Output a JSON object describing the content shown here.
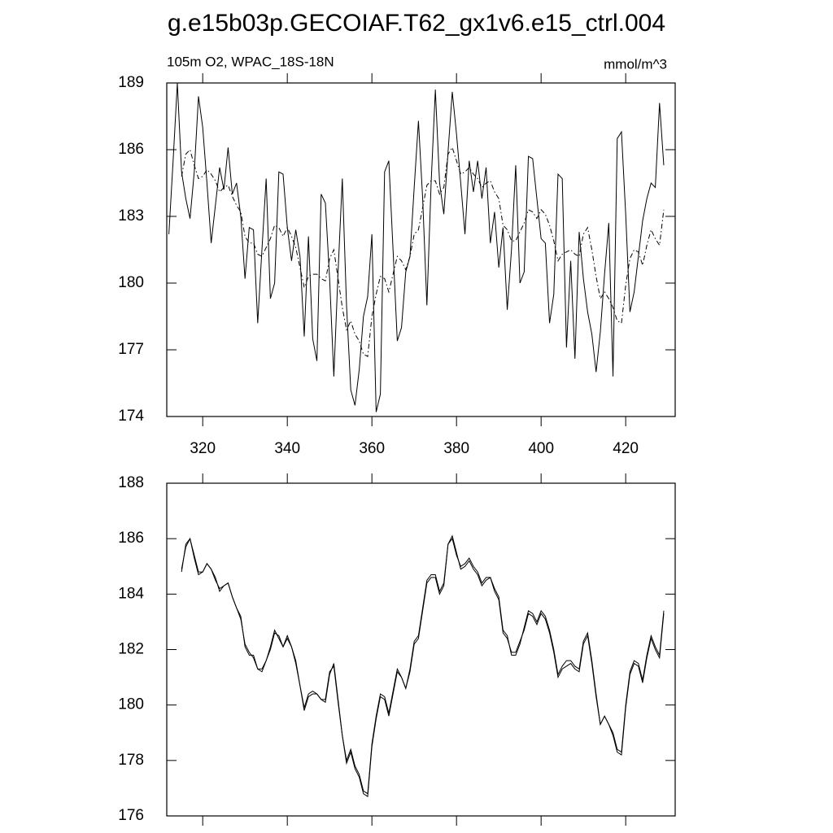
{
  "chart_data": [
    {
      "type": "line",
      "title": "g.e15b03p.GECOIAF.T62_gx1v6.e15_ctrl.004",
      "subtitle": "105m O2, WPAC_18S-18N",
      "units": "mmol/m^3",
      "x": [
        312,
        313,
        314,
        315,
        316,
        317,
        318,
        319,
        320,
        321,
        322,
        323,
        324,
        325,
        326,
        327,
        328,
        329,
        330,
        331,
        332,
        333,
        334,
        335,
        336,
        337,
        338,
        339,
        340,
        341,
        342,
        343,
        344,
        345,
        346,
        347,
        348,
        349,
        350,
        351,
        352,
        353,
        354,
        355,
        356,
        357,
        358,
        359,
        360,
        361,
        362,
        363,
        364,
        365,
        366,
        367,
        368,
        369,
        370,
        371,
        372,
        373,
        374,
        375,
        376,
        377,
        378,
        379,
        380,
        381,
        382,
        383,
        384,
        385,
        386,
        387,
        388,
        389,
        390,
        391,
        392,
        393,
        394,
        395,
        396,
        397,
        398,
        399,
        400,
        401,
        402,
        403,
        404,
        405,
        406,
        407,
        408,
        409,
        410,
        411,
        412,
        413,
        414,
        415,
        416,
        417,
        418,
        419,
        420,
        421,
        422,
        423,
        424,
        425,
        426,
        427,
        428,
        429
      ],
      "series": [
        {
          "color": "#000000",
          "style": "solid",
          "values": [
            182.2,
            185.5,
            189,
            185,
            183.8,
            182.9,
            185,
            188.4,
            187,
            184.5,
            181.8,
            183.5,
            185.2,
            184.2,
            186.1,
            184,
            184.5,
            183,
            180.2,
            182.5,
            182.4,
            178.2,
            181.5,
            184.7,
            179.3,
            180,
            185,
            184.9,
            182.5,
            181,
            182.4,
            181.2,
            177.6,
            182.1,
            177.5,
            176.5,
            184,
            183.6,
            180.2,
            175.8,
            180.5,
            184.7,
            179,
            175.2,
            174.5,
            176.1,
            178.5,
            179.4,
            182.2,
            174.2,
            175,
            185,
            185.5,
            181.5,
            177.4,
            178,
            180.5,
            181.2,
            184.3,
            187.3,
            183.8,
            179,
            184.5,
            188.7,
            184.5,
            183.1,
            185.9,
            188.6,
            186.7,
            184.5,
            182.2,
            185.5,
            184.1,
            185.5,
            183.8,
            185.2,
            181.8,
            183.2,
            180.7,
            182.5,
            178.8,
            181.5,
            185.3,
            180,
            180.5,
            185.7,
            185.6,
            183.8,
            182,
            181.8,
            178.2,
            179.5,
            184.9,
            184.7,
            177.1,
            181,
            176.6,
            182.3,
            180.2,
            178.7,
            177.7,
            176,
            177.8,
            180.4,
            182.7,
            175.8,
            186.5,
            186.8,
            183.1,
            178.7,
            179.6,
            181.2,
            182.8,
            183.8,
            184.5,
            184.3,
            188.1,
            185.3
          ]
        },
        {
          "color": "#000000",
          "style": "dashdot",
          "values": [
            null,
            null,
            null,
            184.8,
            185.8,
            186,
            185.3,
            184.7,
            184.8,
            185.1,
            184.9,
            184.6,
            184.1,
            184.3,
            184.4,
            183.9,
            183.5,
            183.2,
            182.1,
            181.8,
            181.8,
            181.3,
            181.2,
            181.6,
            182,
            182.6,
            182.5,
            182.1,
            182.5,
            182.1,
            181.6,
            180.7,
            179.8,
            180.3,
            180.4,
            180.4,
            180.2,
            180.1,
            181.1,
            181.5,
            180.2,
            178.9,
            177.9,
            178.3,
            177.7,
            177.4,
            176.8,
            176.7,
            178.5,
            179.5,
            180.3,
            180.2,
            179.6,
            180.4,
            181.2,
            181,
            180.6,
            181.2,
            182.2,
            182.4,
            183.4,
            184.4,
            184.6,
            184.6,
            184,
            184.3,
            185.8,
            186.1,
            185.5,
            184.9,
            185,
            185.2,
            184.9,
            184.7,
            184.3,
            184.5,
            184.6,
            184.1,
            183.8,
            182.6,
            182.4,
            181.9,
            181.9,
            182.3,
            182.7,
            183.3,
            183.2,
            182.9,
            183.3,
            183.1,
            182.6,
            181.9,
            181,
            181.3,
            181.4,
            181.5,
            181.3,
            181.2,
            182.2,
            182.5,
            181.5,
            180.3,
            179.3,
            179.6,
            179.3,
            178.9,
            178.3,
            178.2,
            179.9,
            181.1,
            181.5,
            181.4,
            180.8,
            181.7,
            182.4,
            182,
            181.7,
            183.3
          ]
        }
      ],
      "xlim": [
        311.5,
        431.7
      ],
      "xticks": [
        320,
        340,
        360,
        380,
        400,
        420
      ],
      "xtick_labels": true,
      "ylim": [
        174,
        189
      ],
      "yticks": [
        174,
        177,
        180,
        183,
        186,
        189
      ]
    },
    {
      "type": "line",
      "x": [
        312,
        313,
        314,
        315,
        316,
        317,
        318,
        319,
        320,
        321,
        322,
        323,
        324,
        325,
        326,
        327,
        328,
        329,
        330,
        331,
        332,
        333,
        334,
        335,
        336,
        337,
        338,
        339,
        340,
        341,
        342,
        343,
        344,
        345,
        346,
        347,
        348,
        349,
        350,
        351,
        352,
        353,
        354,
        355,
        356,
        357,
        358,
        359,
        360,
        361,
        362,
        363,
        364,
        365,
        366,
        367,
        368,
        369,
        370,
        371,
        372,
        373,
        374,
        375,
        376,
        377,
        378,
        379,
        380,
        381,
        382,
        383,
        384,
        385,
        386,
        387,
        388,
        389,
        390,
        391,
        392,
        393,
        394,
        395,
        396,
        397,
        398,
        399,
        400,
        401,
        402,
        403,
        404,
        405,
        406,
        407,
        408,
        409,
        410,
        411,
        412,
        413,
        414,
        415,
        416,
        417,
        418,
        419,
        420,
        421,
        422,
        423,
        424,
        425,
        426,
        427,
        428,
        429
      ],
      "series": [
        {
          "color": "#000000",
          "style": "solid",
          "values": [
            null,
            null,
            null,
            184.8,
            185.8,
            186,
            185.3,
            184.7,
            184.8,
            185.1,
            184.9,
            184.6,
            184.1,
            184.3,
            184.4,
            183.9,
            183.5,
            183.2,
            182.1,
            181.8,
            181.8,
            181.3,
            181.2,
            181.6,
            182,
            182.6,
            182.5,
            182.1,
            182.5,
            182.1,
            181.6,
            180.7,
            179.8,
            180.3,
            180.4,
            180.4,
            180.2,
            180.1,
            181.1,
            181.5,
            180.2,
            178.9,
            177.9,
            178.3,
            177.7,
            177.4,
            176.8,
            176.7,
            178.5,
            179.5,
            180.3,
            180.2,
            179.6,
            180.4,
            181.2,
            181,
            180.6,
            181.2,
            182.2,
            182.4,
            183.4,
            184.4,
            184.6,
            184.6,
            184,
            184.3,
            185.8,
            186.1,
            185.5,
            184.9,
            185,
            185.2,
            184.9,
            184.7,
            184.3,
            184.5,
            184.6,
            184.1,
            183.8,
            182.6,
            182.4,
            181.9,
            181.9,
            182.3,
            182.7,
            183.3,
            183.2,
            182.9,
            183.3,
            183.1,
            182.6,
            181.9,
            181,
            181.3,
            181.4,
            181.5,
            181.3,
            181.2,
            182.2,
            182.5,
            181.5,
            180.3,
            179.3,
            179.6,
            179.3,
            178.9,
            178.3,
            178.2,
            179.9,
            181.1,
            181.5,
            181.4,
            180.8,
            181.7,
            182.4,
            182,
            181.7,
            183.3
          ]
        },
        {
          "color": "#000000",
          "style": "solid",
          "values": [
            null,
            null,
            null,
            184.9,
            185.7,
            186,
            185.4,
            184.8,
            184.8,
            185.1,
            184.9,
            184.5,
            184.2,
            184.3,
            184.4,
            183.9,
            183.5,
            183.1,
            182.2,
            181.9,
            181.7,
            181.3,
            181.3,
            181.6,
            182.1,
            182.7,
            182.4,
            182.1,
            182.4,
            182.1,
            181.5,
            180.7,
            179.9,
            180.4,
            180.5,
            180.4,
            180.2,
            180.2,
            181.2,
            181.4,
            180.1,
            178.9,
            178,
            178.4,
            177.8,
            177.5,
            176.9,
            176.8,
            178.6,
            179.6,
            180.4,
            180.3,
            179.7,
            180.5,
            181.3,
            181,
            180.6,
            181.3,
            182.3,
            182.5,
            183.5,
            184.5,
            184.7,
            184.7,
            184.1,
            184.4,
            185.8,
            186,
            185.4,
            185,
            185.1,
            185.3,
            185,
            184.8,
            184.4,
            184.6,
            184.6,
            184.2,
            183.9,
            182.7,
            182.5,
            181.8,
            181.8,
            182.2,
            182.8,
            183.4,
            183.3,
            183,
            183.4,
            183.2,
            182.7,
            182,
            181.1,
            181.4,
            181.6,
            181.6,
            181.4,
            181.3,
            182.3,
            182.6,
            181.6,
            180.4,
            179.3,
            179.6,
            179.3,
            179,
            178.4,
            178.3,
            180,
            181.2,
            181.6,
            181.5,
            180.9,
            181.8,
            182.5,
            182.1,
            181.8,
            183.4
          ]
        }
      ],
      "xlim": [
        311.5,
        431.7
      ],
      "xticks": [
        320,
        340,
        360,
        380,
        400,
        420
      ],
      "xtick_labels": false,
      "ylim": [
        176,
        188
      ],
      "yticks": [
        176,
        178,
        180,
        182,
        184,
        186,
        188
      ]
    }
  ]
}
